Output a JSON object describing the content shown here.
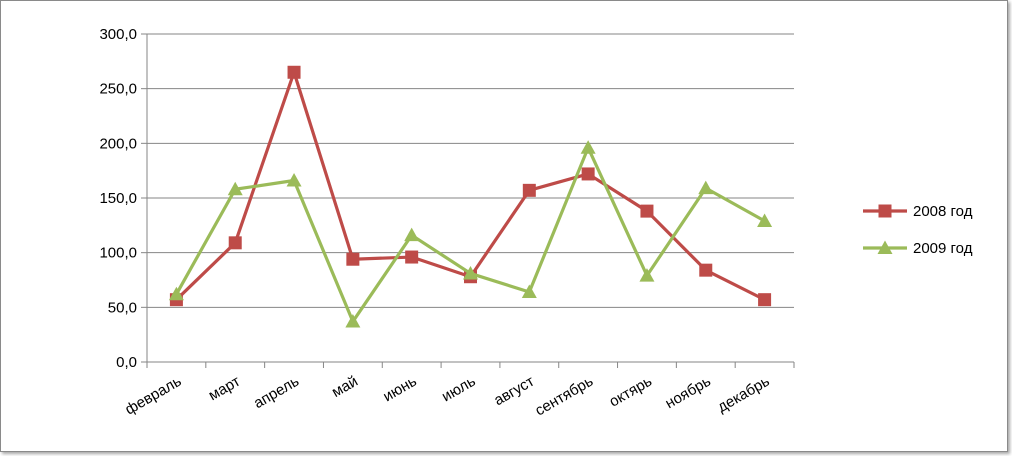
{
  "colors": {
    "series_2008": "#be4b48",
    "series_2009": "#9bbb59",
    "gridline": "#868686",
    "axis": "#868686"
  },
  "chart_data": {
    "type": "line",
    "categories": [
      "февраль",
      "март",
      "апрель",
      "май",
      "июнь",
      "июль",
      "август",
      "сентябрь",
      "октярь",
      "ноябрь",
      "декабрь"
    ],
    "ylim": [
      0,
      300
    ],
    "yticks": [
      "0,0",
      "50,0",
      "100,0",
      "150,0",
      "200,0",
      "250,0",
      "300,0"
    ],
    "ytick_values": [
      0,
      50,
      100,
      150,
      200,
      250,
      300
    ],
    "grid": true,
    "legend": "right",
    "series": [
      {
        "name": "2008 год",
        "marker": "square",
        "color": "#be4b48",
        "values": [
          57,
          109,
          265,
          94,
          96,
          78,
          157,
          172,
          138,
          84,
          57
        ]
      },
      {
        "name": "2009 год",
        "marker": "triangle",
        "color": "#9bbb59",
        "values": [
          62,
          158,
          166,
          37,
          116,
          81,
          64,
          196,
          79,
          159,
          129
        ]
      }
    ]
  }
}
